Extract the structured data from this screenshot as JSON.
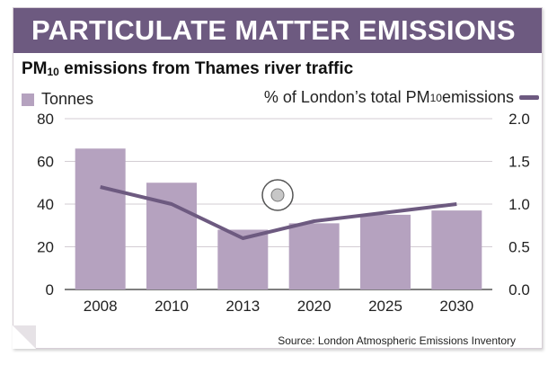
{
  "banner_title": "PARTICULATE MATTER EMISSIONS",
  "subtitle": {
    "prefix": "PM",
    "sub": "10",
    "suffix": " emissions from Thames river traffic"
  },
  "legend": {
    "bar_label": "Tonnes",
    "line_prefix": "% of London’s total PM",
    "line_sub": "10",
    "line_suffix": " emissions"
  },
  "colors": {
    "bar": "#b5a2bf",
    "line": "#6d5a80",
    "banner": "#6d5a80"
  },
  "source": "Source: London Atmospheric Emissions Inventory",
  "chart_data": {
    "type": "bar",
    "categories": [
      "2008",
      "2010",
      "2013",
      "2020",
      "2025",
      "2030"
    ],
    "series": [
      {
        "name": "Tonnes",
        "type": "bar",
        "axis": "left",
        "values": [
          66,
          50,
          28,
          31,
          35,
          37
        ]
      },
      {
        "name": "% of London’s total PM10 emissions",
        "type": "line",
        "axis": "right",
        "values": [
          1.2,
          1.0,
          0.6,
          0.8,
          0.9,
          1.0
        ]
      }
    ],
    "ylim": [
      0,
      80
    ],
    "y_ticks": [
      "0",
      "20",
      "40",
      "60",
      "80"
    ],
    "y2lim": [
      0,
      2.0
    ],
    "y2_ticks": [
      "0.0",
      "0.5",
      "1.0",
      "1.5",
      "2.0"
    ],
    "grid": true,
    "legend_position": "top"
  }
}
